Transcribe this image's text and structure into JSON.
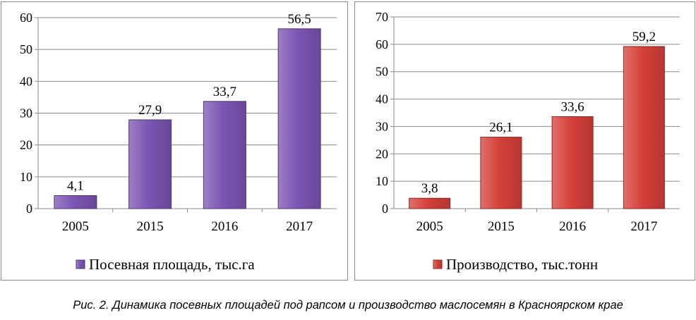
{
  "chart_data": [
    {
      "type": "bar",
      "categories": [
        "2005",
        "2015",
        "2016",
        "2017"
      ],
      "series": [
        {
          "name": "Посевная площадь, тыс.га",
          "values": [
            4.1,
            27.9,
            33.7,
            56.5
          ]
        }
      ],
      "data_labels": [
        "4,1",
        "27,9",
        "33,7",
        "56,5"
      ],
      "yticks": [
        "0",
        "10",
        "20",
        "30",
        "40",
        "50",
        "60"
      ],
      "ylim": [
        0,
        60
      ],
      "grid": true,
      "legend_position": "bottom",
      "color": "#7b55b3"
    },
    {
      "type": "bar",
      "categories": [
        "2005",
        "2015",
        "2016",
        "2017"
      ],
      "series": [
        {
          "name": "Производство, тыс.тонн",
          "values": [
            3.8,
            26.1,
            33.6,
            59.2
          ]
        }
      ],
      "data_labels": [
        "3,8",
        "26,1",
        "33,6",
        "59,2"
      ],
      "yticks": [
        "0",
        "10",
        "20",
        "30",
        "40",
        "50",
        "60",
        "70"
      ],
      "ylim": [
        0,
        70
      ],
      "grid": true,
      "legend_position": "bottom",
      "color": "#d6403a"
    }
  ],
  "caption": "Рис. 2. Динамика посевных площадей под рапсом и производство маслосемян в Красноярском крае"
}
